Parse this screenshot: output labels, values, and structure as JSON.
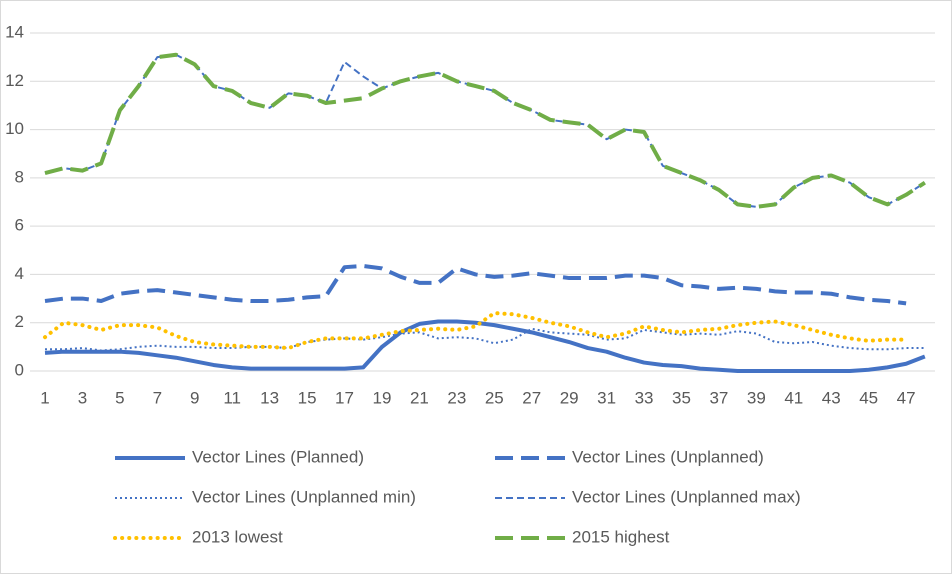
{
  "chart_data": {
    "type": "line",
    "categories": [
      "1",
      null,
      "3",
      null,
      "5",
      null,
      "7",
      null,
      "9",
      null,
      "11",
      null,
      "13",
      null,
      "15",
      null,
      "17",
      null,
      "19",
      null,
      "21",
      null,
      "23",
      null,
      "25",
      null,
      "27",
      null,
      "29",
      null,
      "31",
      null,
      "33",
      null,
      "35",
      null,
      "37",
      null,
      "39",
      null,
      "41",
      null,
      "43",
      null,
      "45",
      null,
      "47",
      null
    ],
    "ylim": [
      0,
      14
    ],
    "yticks": [
      0,
      2,
      4,
      6,
      8,
      10,
      12,
      14
    ],
    "grid": true,
    "legend": "bottom",
    "series": [
      {
        "name": "Vector Lines (Planned)",
        "color": "#4472c4",
        "style": "solid",
        "values": [
          0.75,
          0.8,
          0.8,
          0.8,
          0.8,
          0.75,
          0.65,
          0.55,
          0.4,
          0.25,
          0.15,
          0.1,
          0.1,
          0.1,
          0.1,
          0.1,
          0.1,
          0.15,
          1.0,
          1.6,
          1.95,
          2.05,
          2.05,
          2.0,
          1.9,
          1.75,
          1.6,
          1.4,
          1.2,
          0.95,
          0.8,
          0.55,
          0.35,
          0.25,
          0.2,
          0.1,
          0.05,
          0,
          0,
          0,
          0,
          0,
          0,
          0,
          0.05,
          0.15,
          0.3,
          0.6
        ]
      },
      {
        "name": "Vector Lines (Unplanned)",
        "color": "#4472c4",
        "style": "long-dash",
        "values": [
          2.9,
          3.0,
          3.0,
          2.9,
          3.2,
          3.3,
          3.35,
          3.25,
          3.15,
          3.05,
          2.95,
          2.9,
          2.9,
          2.95,
          3.05,
          3.1,
          4.3,
          4.35,
          4.25,
          3.9,
          3.65,
          3.65,
          4.25,
          4.0,
          3.9,
          3.95,
          4.05,
          3.95,
          3.85,
          3.85,
          3.85,
          3.95,
          3.95,
          3.85,
          3.55,
          3.5,
          3.4,
          3.45,
          3.4,
          3.3,
          3.25,
          3.25,
          3.2,
          3.05,
          2.95,
          2.9,
          2.8,
          null
        ]
      },
      {
        "name": "Vector Lines (Unplanned min)",
        "color": "#4472c4",
        "style": "dot",
        "values": [
          0.9,
          0.9,
          0.95,
          0.85,
          0.9,
          1.0,
          1.05,
          1.0,
          1.0,
          0.95,
          0.95,
          1.0,
          1.0,
          0.95,
          1.2,
          1.3,
          1.35,
          1.3,
          1.4,
          1.55,
          1.6,
          1.35,
          1.4,
          1.35,
          1.15,
          1.3,
          1.75,
          1.6,
          1.55,
          1.5,
          1.3,
          1.35,
          1.7,
          1.6,
          1.5,
          1.55,
          1.5,
          1.65,
          1.55,
          1.2,
          1.15,
          1.2,
          1.05,
          0.95,
          0.9,
          0.9,
          0.95,
          0.95
        ]
      },
      {
        "name": "Vector Lines (Unplanned max)",
        "color": "#4472c4",
        "style": "dash",
        "values": [
          8.2,
          8.4,
          8.3,
          8.6,
          10.8,
          11.8,
          13.0,
          13.1,
          12.7,
          11.8,
          11.6,
          11.1,
          10.9,
          11.5,
          11.4,
          11.1,
          12.8,
          12.2,
          11.7,
          12.0,
          12.2,
          12.35,
          12.0,
          11.8,
          11.6,
          11.1,
          10.8,
          10.4,
          10.3,
          10.2,
          9.6,
          10.0,
          9.9,
          8.5,
          8.2,
          7.9,
          7.5,
          6.9,
          6.8,
          6.9,
          7.6,
          8.0,
          8.1,
          7.8,
          7.2,
          6.9,
          7.3,
          7.8
        ]
      },
      {
        "name": "2013 lowest",
        "color": "#ffc000",
        "style": "round-dot",
        "values": [
          1.4,
          2.0,
          1.9,
          1.7,
          1.9,
          1.9,
          1.8,
          1.45,
          1.2,
          1.1,
          1.05,
          1.0,
          1.0,
          0.95,
          1.2,
          1.35,
          1.35,
          1.35,
          1.5,
          1.65,
          1.7,
          1.75,
          1.7,
          1.85,
          2.4,
          2.35,
          2.2,
          2.0,
          1.85,
          1.6,
          1.4,
          1.55,
          1.85,
          1.7,
          1.6,
          1.7,
          1.75,
          1.9,
          2.0,
          2.05,
          1.9,
          1.7,
          1.5,
          1.35,
          1.25,
          1.3,
          1.3,
          null
        ]
      },
      {
        "name": "2015 highest",
        "color": "#70ad47",
        "style": "long-dash",
        "values": [
          8.2,
          8.4,
          8.3,
          8.6,
          10.8,
          11.8,
          13.0,
          13.1,
          12.7,
          11.8,
          11.6,
          11.1,
          10.9,
          11.5,
          11.4,
          11.1,
          11.2,
          11.3,
          11.7,
          12.0,
          12.2,
          12.35,
          12.0,
          11.8,
          11.6,
          11.1,
          10.8,
          10.4,
          10.3,
          10.2,
          9.6,
          10.0,
          9.9,
          8.5,
          8.2,
          7.9,
          7.5,
          6.9,
          6.8,
          6.9,
          7.6,
          8.0,
          8.1,
          7.8,
          7.2,
          6.9,
          7.3,
          7.8
        ]
      }
    ]
  }
}
